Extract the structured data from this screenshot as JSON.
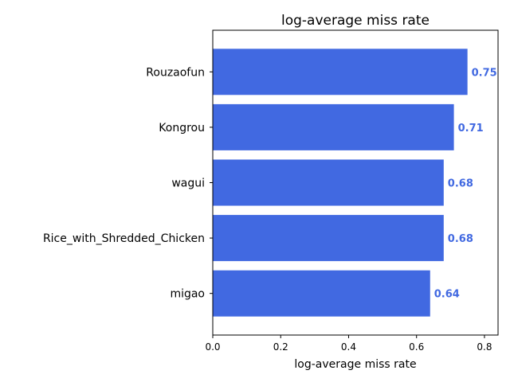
{
  "chart_data": {
    "type": "bar",
    "orientation": "horizontal",
    "title": "log-average miss rate",
    "xlabel": "log-average miss rate",
    "ylabel": "",
    "categories": [
      "Rouzaofun",
      "Kongrou",
      "wagui",
      "Rice_with_Shredded_Chicken",
      "migao"
    ],
    "values": [
      0.75,
      0.71,
      0.68,
      0.68,
      0.64
    ],
    "value_labels": [
      "0.75",
      "0.71",
      "0.68",
      "0.68",
      "0.64"
    ],
    "xlim": [
      0,
      0.84
    ],
    "xticks": [
      0.0,
      0.2,
      0.4,
      0.6,
      0.8
    ],
    "xtick_labels": [
      "0.0",
      "0.2",
      "0.4",
      "0.6",
      "0.8"
    ],
    "grid": false,
    "legend": "none",
    "bar_color": "#4169e1",
    "label_color": "#4169e1"
  }
}
